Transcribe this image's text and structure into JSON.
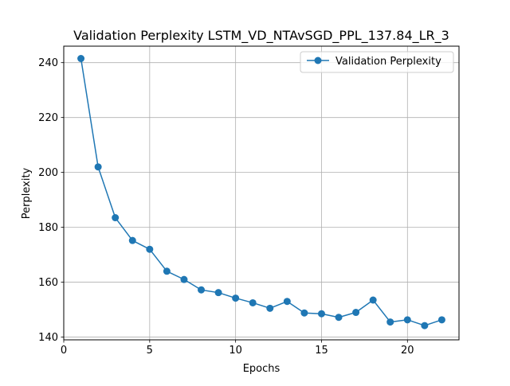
{
  "chart_data": {
    "type": "line",
    "title": "Validation Perplexity LSTM_VD_NTAvSGD_PPL_137.84_LR_3",
    "xlabel": "Epochs",
    "ylabel": "Perplexity",
    "xlim": [
      0,
      23
    ],
    "ylim": [
      139,
      246
    ],
    "xticks": [
      0,
      5,
      10,
      15,
      20
    ],
    "yticks": [
      140,
      160,
      180,
      200,
      220,
      240
    ],
    "grid": true,
    "legend_position": "top-right",
    "series": [
      {
        "name": "Validation Perplexity",
        "color": "#1f77b4",
        "marker": "circle",
        "x": [
          1,
          2,
          3,
          4,
          5,
          6,
          7,
          8,
          9,
          10,
          11,
          12,
          13,
          14,
          15,
          16,
          17,
          18,
          19,
          20,
          21,
          22
        ],
        "y": [
          241.5,
          202.0,
          183.5,
          175.2,
          172.0,
          164.0,
          161.0,
          157.2,
          156.2,
          154.2,
          152.5,
          150.5,
          153.0,
          148.8,
          148.5,
          147.2,
          149.0,
          153.5,
          145.5,
          146.3,
          144.2,
          146.3
        ]
      }
    ]
  }
}
